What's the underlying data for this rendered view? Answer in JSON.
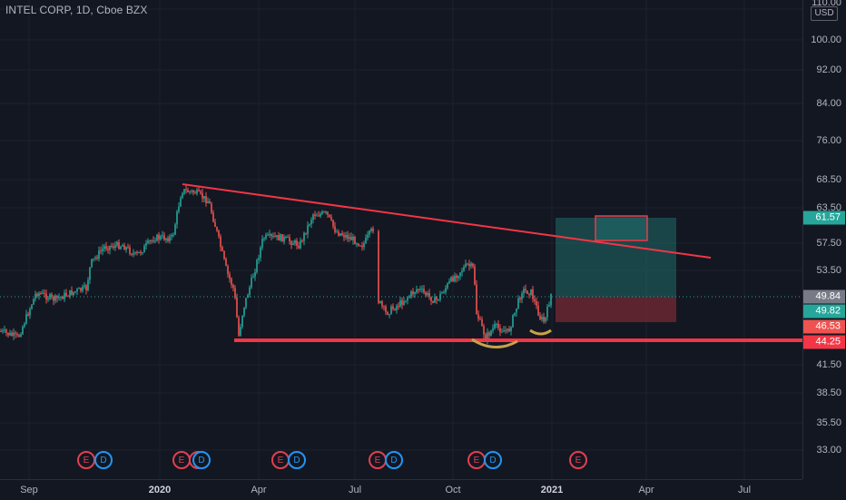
{
  "header": {
    "title": "INTEL CORP, 1D, Cboe BZX"
  },
  "price_axis": {
    "currency_label": "USD",
    "top_tick": "110.00",
    "ticks": [
      "100.00",
      "92.00",
      "84.00",
      "76.00",
      "68.50",
      "63.50",
      "57.50",
      "53.50",
      "41.50",
      "38.50",
      "35.50",
      "33.00"
    ],
    "labels": [
      {
        "text": "61.57",
        "color": "#26a69a"
      },
      {
        "text": "49.84",
        "color": "#787b86"
      },
      {
        "text": "49.82",
        "color": "#26a69a"
      },
      {
        "text": "46.53",
        "color": "#ef5350"
      },
      {
        "text": "44.25",
        "color": "#f23645"
      }
    ]
  },
  "time_axis": {
    "ticks": [
      {
        "label": "Sep",
        "bold": false
      },
      {
        "label": "2020",
        "bold": true
      },
      {
        "label": "Apr",
        "bold": false
      },
      {
        "label": "Jul",
        "bold": false
      },
      {
        "label": "Oct",
        "bold": false
      },
      {
        "label": "2021",
        "bold": true
      },
      {
        "label": "Apr",
        "bold": false
      },
      {
        "label": "Jul",
        "bold": false
      }
    ]
  },
  "events": {
    "earnings_letter": "E",
    "dividend_letter": "D"
  },
  "colors": {
    "background": "#131722",
    "up": "#26a69a",
    "down": "#ef5350",
    "trendline": "#f23645",
    "arc": "#c9a24a",
    "profit_zone": "#1f6b6a",
    "loss_zone": "#7a2b34"
  }
}
